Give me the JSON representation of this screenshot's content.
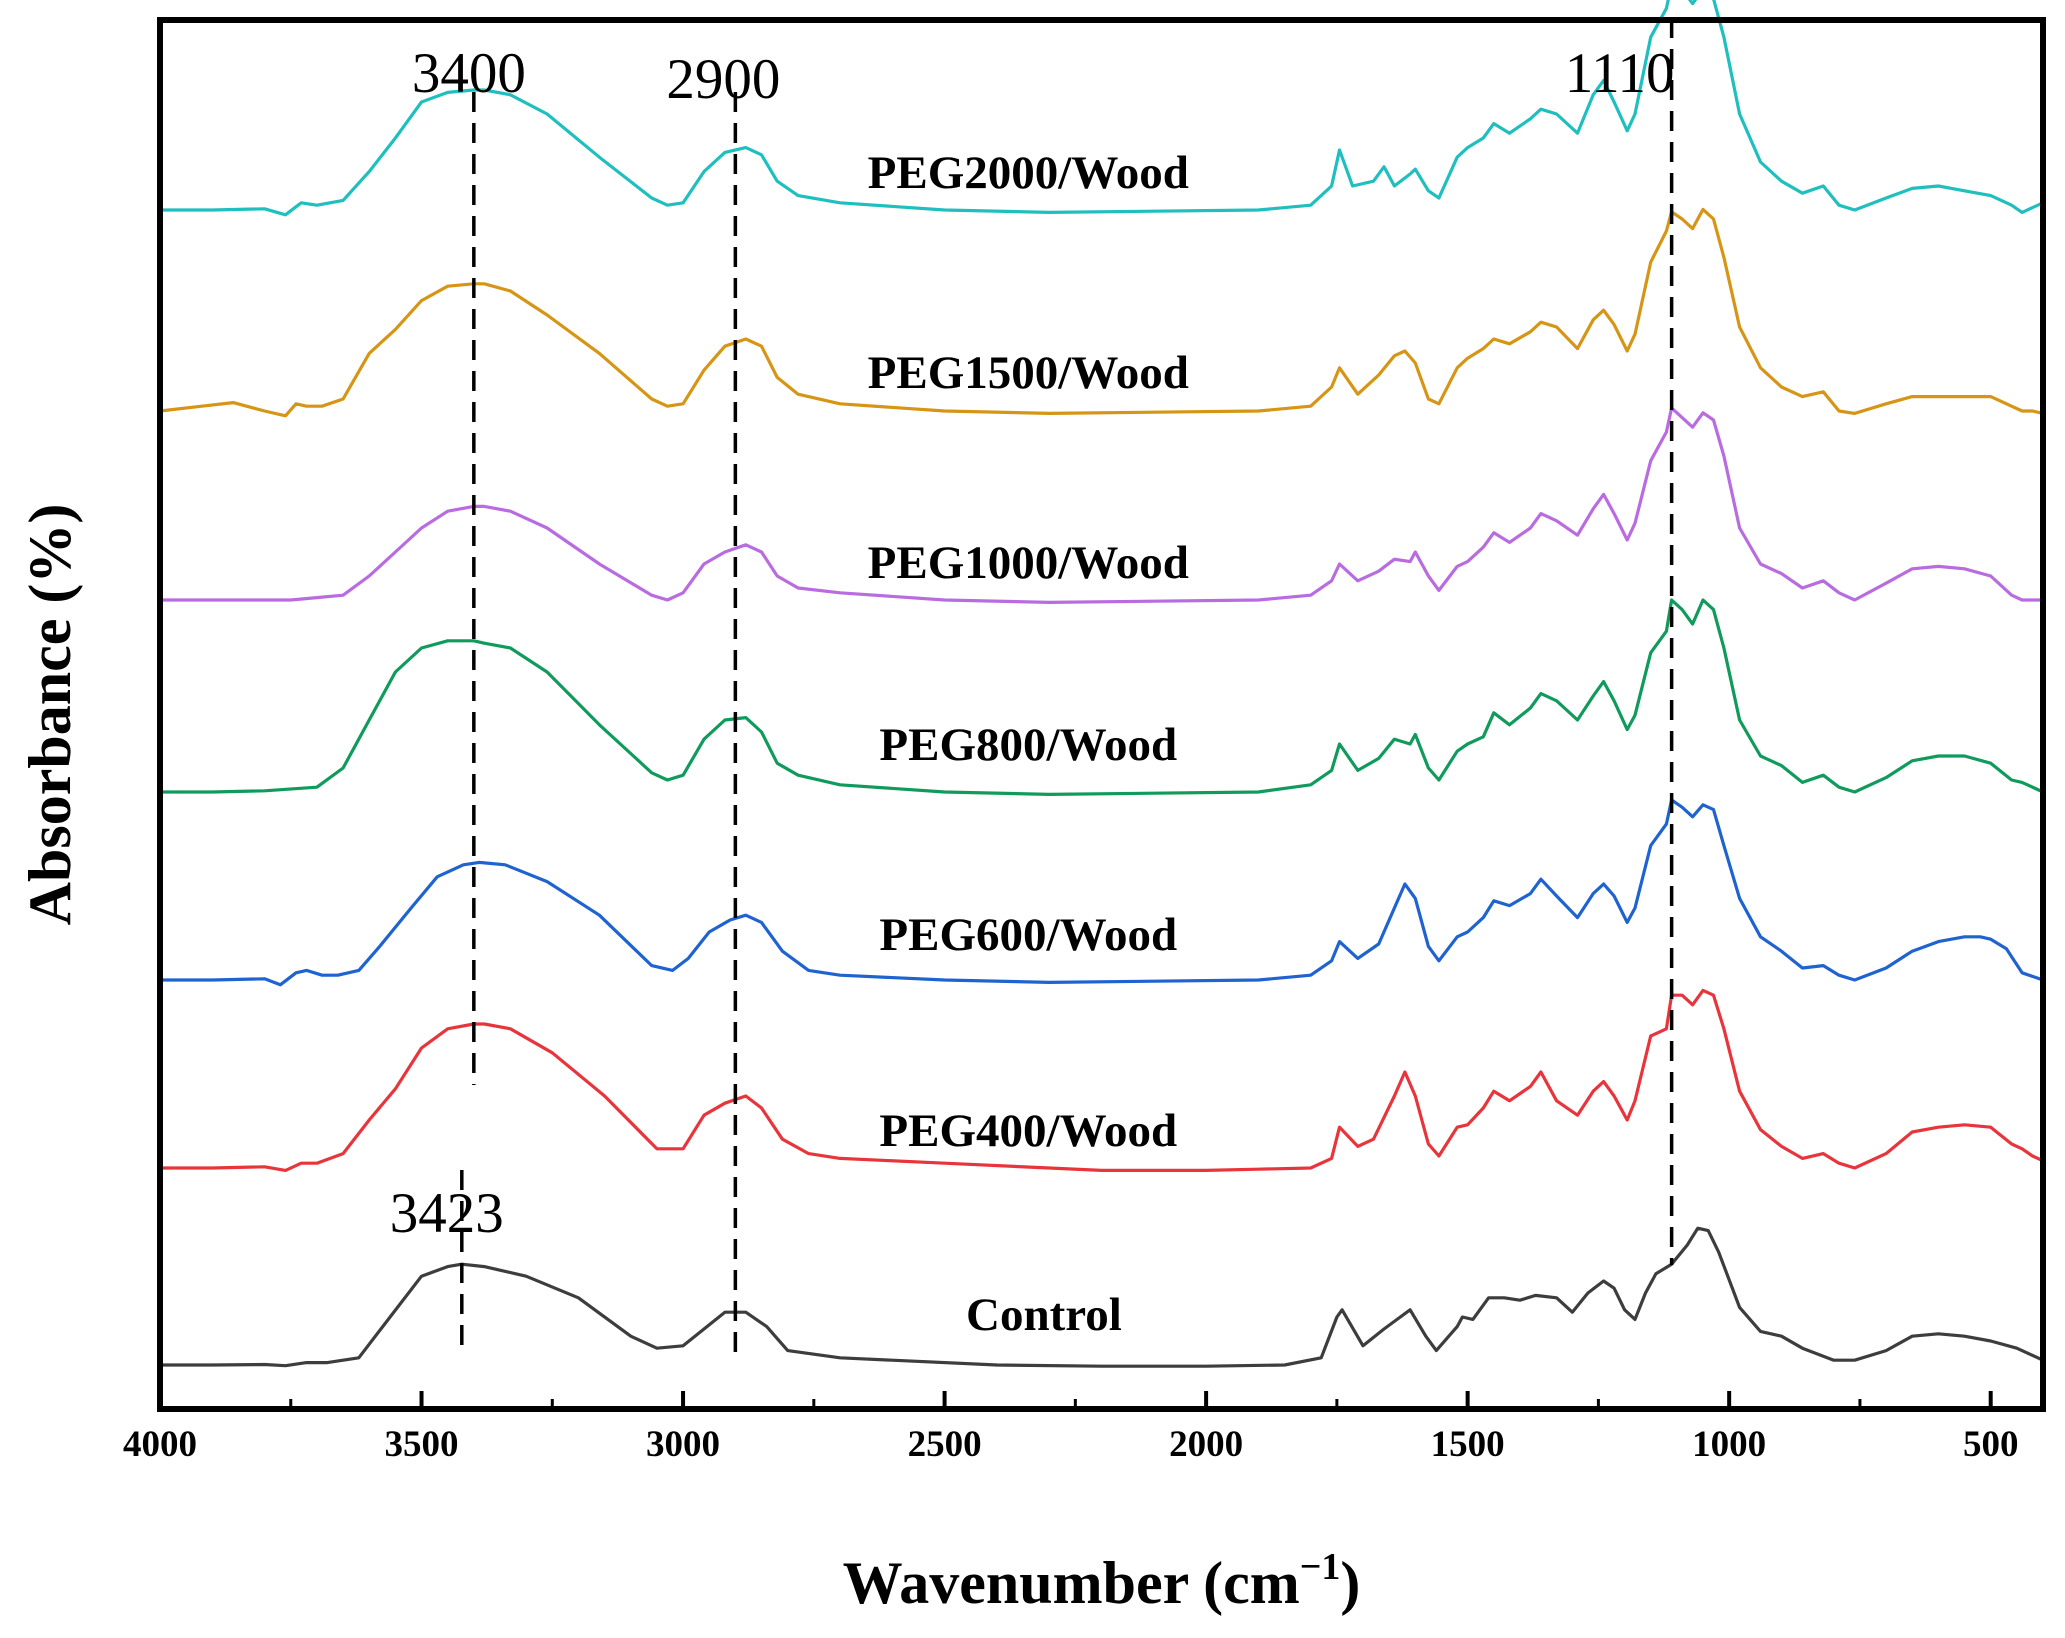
{
  "chart_data": {
    "type": "line",
    "title": "",
    "xlabel": "Wavenumber (cm",
    "xlabel_sup": "−1",
    "xlabel_close": ")",
    "ylabel": "Absorbance (%)",
    "xlim": [
      4000,
      400
    ],
    "xticks": [
      4000,
      3500,
      3000,
      2500,
      2000,
      1500,
      1000,
      500
    ],
    "grid": false,
    "legend": "inline labels beside each curve",
    "series": [
      {
        "name": "Control",
        "label": "Control",
        "color": "#3d3d3d",
        "label_x": 2310,
        "x": [
          4000,
          3900,
          3800,
          3760,
          3720,
          3680,
          3620,
          3560,
          3500,
          3450,
          3423,
          3380,
          3300,
          3200,
          3100,
          3050,
          3000,
          2960,
          2920,
          2880,
          2840,
          2800,
          2700,
          2600,
          2400,
          2200,
          2000,
          1850,
          1780,
          1750,
          1740,
          1700,
          1660,
          1610,
          1580,
          1560,
          1520,
          1510,
          1490,
          1460,
          1430,
          1400,
          1370,
          1330,
          1300,
          1270,
          1240,
          1220,
          1200,
          1180,
          1160,
          1140,
          1110,
          1080,
          1060,
          1040,
          1020,
          980,
          940,
          900,
          860,
          800,
          760,
          700,
          650,
          600,
          550,
          500,
          450,
          400
        ],
        "values": [
          0.0,
          0.0,
          0.002,
          -0.003,
          0.01,
          0.01,
          0.03,
          0.2,
          0.37,
          0.41,
          0.42,
          0.41,
          0.37,
          0.28,
          0.12,
          0.07,
          0.08,
          0.15,
          0.22,
          0.22,
          0.16,
          0.06,
          0.03,
          0.02,
          0.0,
          -0.005,
          -0.005,
          0.0,
          0.03,
          0.2,
          0.23,
          0.08,
          0.15,
          0.23,
          0.12,
          0.06,
          0.16,
          0.2,
          0.19,
          0.28,
          0.28,
          0.27,
          0.29,
          0.28,
          0.22,
          0.3,
          0.35,
          0.32,
          0.23,
          0.19,
          0.3,
          0.38,
          0.42,
          0.5,
          0.57,
          0.56,
          0.47,
          0.24,
          0.14,
          0.12,
          0.07,
          0.02,
          0.02,
          0.06,
          0.12,
          0.13,
          0.12,
          0.1,
          0.07,
          0.02
        ]
      },
      {
        "name": "PEG400/Wood",
        "label": "PEG400/Wood",
        "color": "#e8353c",
        "label_x": 2340,
        "x": [
          4000,
          3900,
          3800,
          3760,
          3730,
          3700,
          3650,
          3600,
          3550,
          3500,
          3450,
          3400,
          3380,
          3330,
          3250,
          3150,
          3050,
          3000,
          2960,
          2920,
          2880,
          2850,
          2810,
          2760,
          2700,
          2500,
          2300,
          2200,
          2000,
          1900,
          1800,
          1760,
          1745,
          1710,
          1680,
          1640,
          1620,
          1600,
          1575,
          1555,
          1520,
          1500,
          1470,
          1450,
          1420,
          1380,
          1360,
          1330,
          1290,
          1260,
          1240,
          1220,
          1195,
          1180,
          1150,
          1120,
          1110,
          1090,
          1070,
          1050,
          1030,
          1010,
          980,
          940,
          900,
          860,
          820,
          790,
          760,
          700,
          650,
          600,
          550,
          500,
          460,
          440,
          420,
          400
        ],
        "values": [
          0.0,
          0.0,
          0.005,
          -0.01,
          0.02,
          0.02,
          0.06,
          0.2,
          0.33,
          0.5,
          0.58,
          0.6,
          0.6,
          0.58,
          0.48,
          0.3,
          0.08,
          0.08,
          0.22,
          0.27,
          0.3,
          0.25,
          0.12,
          0.06,
          0.04,
          0.02,
          0.0,
          -0.01,
          -0.01,
          -0.005,
          0.0,
          0.04,
          0.17,
          0.09,
          0.12,
          0.3,
          0.4,
          0.3,
          0.1,
          0.05,
          0.17,
          0.18,
          0.25,
          0.32,
          0.28,
          0.34,
          0.4,
          0.28,
          0.22,
          0.32,
          0.36,
          0.3,
          0.2,
          0.28,
          0.55,
          0.58,
          0.72,
          0.72,
          0.68,
          0.74,
          0.72,
          0.58,
          0.32,
          0.16,
          0.09,
          0.04,
          0.06,
          0.02,
          0.0,
          0.06,
          0.15,
          0.17,
          0.18,
          0.17,
          0.1,
          0.08,
          0.05,
          0.03
        ]
      },
      {
        "name": "PEG600/Wood",
        "label": "PEG600/Wood",
        "color": "#1f63d0",
        "label_x": 2340,
        "x": [
          4000,
          3900,
          3800,
          3770,
          3740,
          3720,
          3690,
          3660,
          3620,
          3580,
          3520,
          3470,
          3420,
          3390,
          3340,
          3260,
          3160,
          3060,
          3020,
          2990,
          2950,
          2910,
          2880,
          2850,
          2810,
          2760,
          2700,
          2500,
          2300,
          2100,
          1900,
          1800,
          1760,
          1745,
          1710,
          1670,
          1640,
          1620,
          1600,
          1575,
          1555,
          1520,
          1500,
          1470,
          1450,
          1420,
          1380,
          1360,
          1330,
          1290,
          1260,
          1240,
          1220,
          1195,
          1180,
          1150,
          1120,
          1110,
          1090,
          1070,
          1050,
          1030,
          1010,
          980,
          940,
          900,
          860,
          820,
          790,
          760,
          700,
          650,
          600,
          550,
          520,
          500,
          470,
          440,
          400
        ],
        "values": [
          0.0,
          0.0,
          0.005,
          -0.02,
          0.03,
          0.04,
          0.02,
          0.02,
          0.04,
          0.14,
          0.3,
          0.43,
          0.48,
          0.49,
          0.48,
          0.41,
          0.27,
          0.06,
          0.04,
          0.09,
          0.2,
          0.25,
          0.27,
          0.24,
          0.12,
          0.04,
          0.02,
          0.0,
          -0.01,
          -0.005,
          0.0,
          0.02,
          0.08,
          0.16,
          0.09,
          0.15,
          0.3,
          0.4,
          0.34,
          0.14,
          0.08,
          0.18,
          0.2,
          0.26,
          0.33,
          0.31,
          0.36,
          0.42,
          0.35,
          0.26,
          0.36,
          0.4,
          0.35,
          0.24,
          0.3,
          0.56,
          0.65,
          0.75,
          0.72,
          0.68,
          0.73,
          0.71,
          0.56,
          0.34,
          0.18,
          0.12,
          0.05,
          0.06,
          0.02,
          0.0,
          0.05,
          0.12,
          0.16,
          0.18,
          0.18,
          0.17,
          0.13,
          0.03,
          0.0
        ]
      },
      {
        "name": "PEG800/Wood",
        "label": "PEG800/Wood",
        "color": "#109b5d",
        "label_x": 2340,
        "x": [
          4000,
          3900,
          3800,
          3700,
          3650,
          3600,
          3550,
          3500,
          3450,
          3400,
          3380,
          3330,
          3260,
          3160,
          3060,
          3030,
          3000,
          2960,
          2920,
          2880,
          2850,
          2820,
          2780,
          2700,
          2500,
          2300,
          2100,
          1900,
          1800,
          1760,
          1745,
          1710,
          1670,
          1640,
          1610,
          1600,
          1575,
          1555,
          1520,
          1500,
          1470,
          1450,
          1420,
          1380,
          1360,
          1330,
          1290,
          1260,
          1240,
          1220,
          1195,
          1180,
          1150,
          1120,
          1110,
          1090,
          1070,
          1050,
          1030,
          1010,
          980,
          940,
          900,
          860,
          820,
          790,
          760,
          700,
          650,
          600,
          550,
          500,
          460,
          440,
          400
        ],
        "values": [
          0.0,
          0.0,
          0.005,
          0.02,
          0.1,
          0.3,
          0.5,
          0.6,
          0.63,
          0.63,
          0.62,
          0.6,
          0.5,
          0.28,
          0.08,
          0.05,
          0.07,
          0.22,
          0.3,
          0.31,
          0.25,
          0.12,
          0.07,
          0.03,
          0.0,
          -0.01,
          -0.005,
          0.0,
          0.03,
          0.09,
          0.2,
          0.09,
          0.14,
          0.22,
          0.2,
          0.24,
          0.1,
          0.05,
          0.17,
          0.2,
          0.23,
          0.33,
          0.28,
          0.35,
          0.41,
          0.38,
          0.3,
          0.4,
          0.46,
          0.38,
          0.26,
          0.32,
          0.58,
          0.67,
          0.8,
          0.76,
          0.7,
          0.8,
          0.76,
          0.6,
          0.3,
          0.15,
          0.11,
          0.04,
          0.07,
          0.02,
          0.0,
          0.06,
          0.13,
          0.15,
          0.15,
          0.12,
          0.05,
          0.04,
          0.0
        ]
      },
      {
        "name": "PEG1000/Wood",
        "label": "PEG1000/Wood",
        "color": "#b86ce0",
        "label_x": 2340,
        "x": [
          4000,
          3900,
          3800,
          3750,
          3700,
          3650,
          3600,
          3550,
          3500,
          3450,
          3400,
          3380,
          3330,
          3260,
          3160,
          3060,
          3030,
          3000,
          2960,
          2920,
          2880,
          2850,
          2820,
          2780,
          2700,
          2500,
          2300,
          2100,
          1900,
          1800,
          1760,
          1745,
          1710,
          1670,
          1640,
          1610,
          1600,
          1575,
          1555,
          1520,
          1500,
          1470,
          1450,
          1420,
          1380,
          1360,
          1330,
          1290,
          1260,
          1240,
          1220,
          1195,
          1180,
          1150,
          1120,
          1110,
          1090,
          1070,
          1050,
          1030,
          1010,
          980,
          940,
          900,
          860,
          820,
          790,
          760,
          700,
          650,
          600,
          550,
          500,
          460,
          440,
          400
        ],
        "values": [
          0.0,
          0.0,
          0.0,
          0.0,
          0.01,
          0.02,
          0.1,
          0.2,
          0.3,
          0.37,
          0.39,
          0.39,
          0.37,
          0.3,
          0.15,
          0.02,
          0.0,
          0.03,
          0.15,
          0.2,
          0.23,
          0.2,
          0.1,
          0.05,
          0.03,
          0.0,
          -0.01,
          -0.005,
          0.0,
          0.02,
          0.08,
          0.15,
          0.08,
          0.12,
          0.17,
          0.16,
          0.2,
          0.1,
          0.04,
          0.14,
          0.16,
          0.22,
          0.28,
          0.24,
          0.3,
          0.36,
          0.33,
          0.27,
          0.38,
          0.44,
          0.36,
          0.25,
          0.32,
          0.58,
          0.7,
          0.8,
          0.76,
          0.72,
          0.78,
          0.75,
          0.6,
          0.3,
          0.15,
          0.11,
          0.05,
          0.08,
          0.03,
          0.0,
          0.07,
          0.13,
          0.14,
          0.13,
          0.1,
          0.02,
          0.0,
          0.0
        ]
      },
      {
        "name": "PEG1500/Wood",
        "label": "PEG1500/Wood",
        "color": "#d69514",
        "label_x": 2340,
        "x": [
          4000,
          3920,
          3860,
          3800,
          3760,
          3740,
          3720,
          3690,
          3650,
          3600,
          3550,
          3500,
          3450,
          3400,
          3380,
          3330,
          3260,
          3160,
          3060,
          3030,
          3000,
          2960,
          2920,
          2880,
          2850,
          2820,
          2780,
          2700,
          2500,
          2300,
          2100,
          1900,
          1800,
          1760,
          1745,
          1710,
          1670,
          1640,
          1620,
          1600,
          1575,
          1555,
          1520,
          1500,
          1470,
          1450,
          1420,
          1380,
          1360,
          1330,
          1290,
          1260,
          1240,
          1220,
          1195,
          1180,
          1150,
          1120,
          1110,
          1090,
          1070,
          1050,
          1030,
          1010,
          980,
          940,
          900,
          860,
          820,
          790,
          760,
          700,
          650,
          600,
          550,
          500,
          460,
          440,
          420,
          400
        ],
        "values": [
          0.0,
          0.02,
          0.035,
          0.0,
          -0.02,
          0.03,
          0.02,
          0.02,
          0.05,
          0.24,
          0.34,
          0.46,
          0.52,
          0.53,
          0.53,
          0.5,
          0.4,
          0.24,
          0.05,
          0.02,
          0.03,
          0.17,
          0.27,
          0.3,
          0.27,
          0.14,
          0.07,
          0.03,
          0.0,
          -0.01,
          -0.005,
          0.0,
          0.02,
          0.1,
          0.18,
          0.07,
          0.15,
          0.23,
          0.25,
          0.2,
          0.05,
          0.03,
          0.18,
          0.22,
          0.26,
          0.3,
          0.28,
          0.33,
          0.37,
          0.35,
          0.26,
          0.38,
          0.42,
          0.36,
          0.25,
          0.32,
          0.62,
          0.75,
          0.83,
          0.8,
          0.76,
          0.84,
          0.8,
          0.64,
          0.35,
          0.18,
          0.1,
          0.06,
          0.08,
          0.0,
          -0.01,
          0.03,
          0.06,
          0.06,
          0.06,
          0.06,
          0.02,
          0.0,
          0.0,
          -0.01
        ]
      },
      {
        "name": "PEG2000/Wood",
        "label": "PEG2000/Wood",
        "color": "#1ebfbe",
        "label_x": 2340,
        "x": [
          4000,
          3900,
          3800,
          3760,
          3730,
          3700,
          3650,
          3600,
          3550,
          3500,
          3450,
          3400,
          3380,
          3330,
          3260,
          3160,
          3060,
          3030,
          3000,
          2960,
          2920,
          2880,
          2850,
          2820,
          2780,
          2700,
          2500,
          2300,
          2100,
          1900,
          1800,
          1760,
          1745,
          1720,
          1680,
          1660,
          1640,
          1610,
          1600,
          1575,
          1555,
          1520,
          1500,
          1470,
          1450,
          1420,
          1380,
          1360,
          1330,
          1290,
          1260,
          1240,
          1220,
          1195,
          1180,
          1150,
          1120,
          1110,
          1090,
          1070,
          1050,
          1030,
          1010,
          980,
          940,
          900,
          860,
          820,
          790,
          760,
          700,
          650,
          600,
          550,
          500,
          460,
          440,
          420,
          400
        ],
        "values": [
          0.0,
          0.0,
          0.005,
          -0.02,
          0.03,
          0.02,
          0.04,
          0.16,
          0.3,
          0.45,
          0.49,
          0.5,
          0.5,
          0.48,
          0.4,
          0.22,
          0.05,
          0.02,
          0.03,
          0.16,
          0.24,
          0.26,
          0.23,
          0.12,
          0.06,
          0.03,
          0.0,
          -0.01,
          -0.005,
          0.0,
          0.02,
          0.1,
          0.25,
          0.1,
          0.12,
          0.18,
          0.1,
          0.15,
          0.17,
          0.08,
          0.05,
          0.22,
          0.26,
          0.3,
          0.36,
          0.32,
          0.38,
          0.42,
          0.4,
          0.32,
          0.48,
          0.54,
          0.45,
          0.33,
          0.4,
          0.72,
          0.84,
          0.94,
          0.92,
          0.86,
          0.92,
          0.88,
          0.72,
          0.4,
          0.2,
          0.12,
          0.07,
          0.1,
          0.02,
          0.0,
          0.05,
          0.09,
          0.1,
          0.08,
          0.06,
          0.02,
          -0.01,
          0.01,
          0.03
        ]
      }
    ],
    "peak_markers": [
      {
        "label": "3400",
        "x": 3400
      },
      {
        "label": "2900",
        "x": 2900
      },
      {
        "label": "1110",
        "x": 1110
      },
      {
        "label": "3423",
        "x": 3423
      }
    ]
  }
}
